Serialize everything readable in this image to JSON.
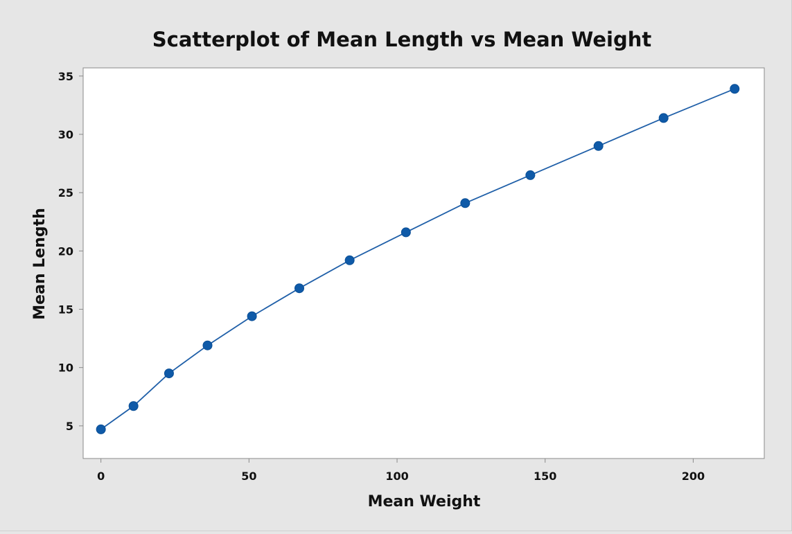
{
  "chart_data": {
    "type": "scatter",
    "title": "Scatterplot of Mean Length vs Mean Weight",
    "xlabel": "Mean Weight",
    "ylabel": "Mean Length",
    "xlim": [
      -6,
      224
    ],
    "ylim": [
      2.2,
      35.7
    ],
    "x_ticks": [
      0,
      50,
      100,
      150,
      200
    ],
    "y_ticks": [
      5,
      10,
      15,
      20,
      25,
      30,
      35
    ],
    "grid": false,
    "legend": "none",
    "connected": true,
    "series": [
      {
        "x": [
          0,
          11,
          23,
          36,
          51,
          67,
          84,
          103,
          123,
          145,
          168,
          190,
          214
        ],
        "y": [
          4.7,
          6.7,
          9.5,
          11.9,
          14.4,
          16.8,
          19.2,
          21.6,
          24.1,
          26.5,
          29.0,
          31.4,
          33.9
        ]
      }
    ],
    "colors": {
      "background": "#e6e6e6",
      "plot_area": "#ffffff",
      "marker": "#0f5aa8",
      "line": "#1f5fa8",
      "axis": "#8a8a8a"
    }
  }
}
